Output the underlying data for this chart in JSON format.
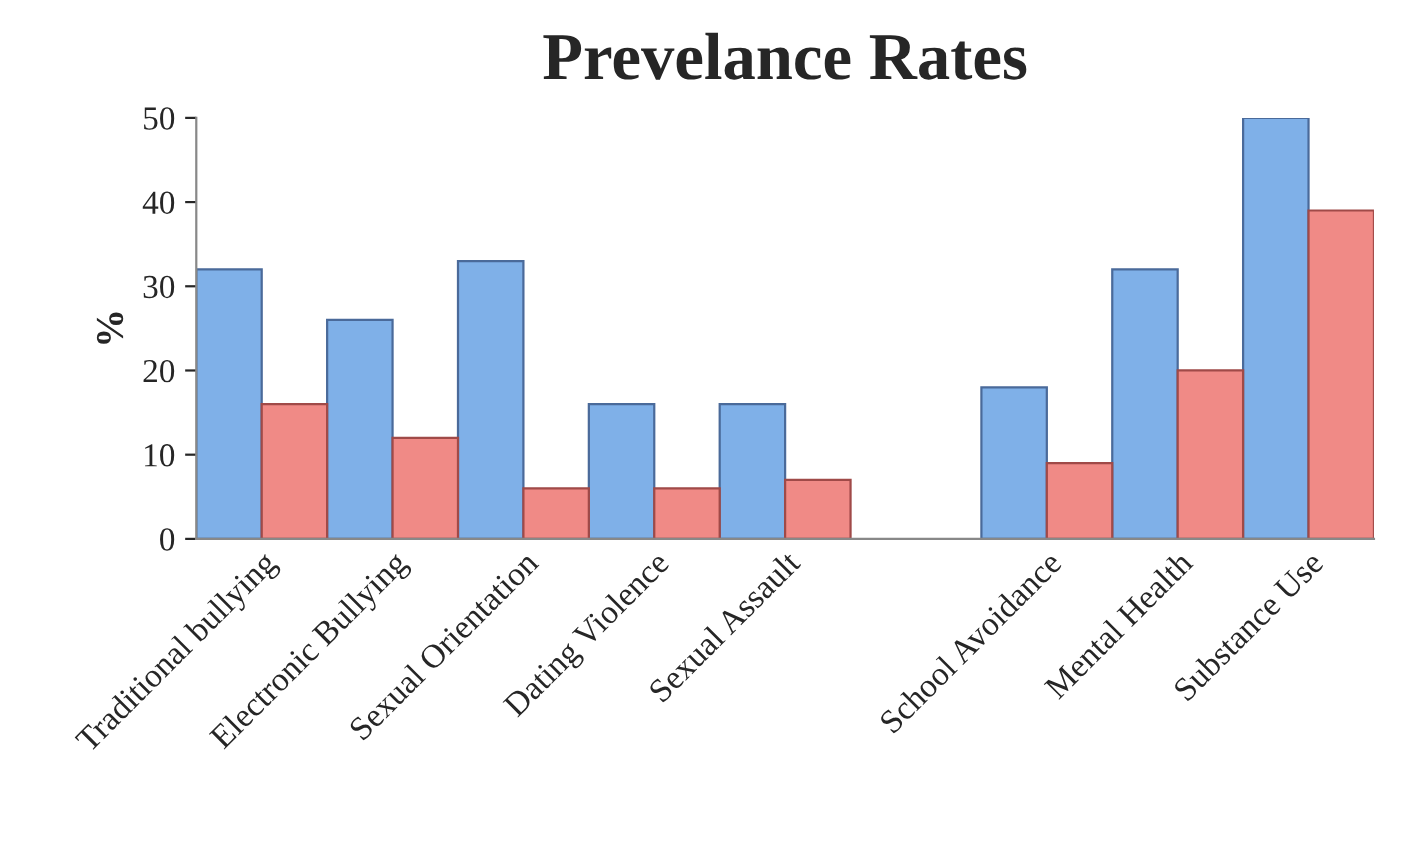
{
  "chart_data": {
    "type": "bar",
    "title": "Prevelance Rates",
    "ylabel": "%",
    "categories": [
      "Traditional bullying",
      "Electronic Bullying",
      "Sexual Orientation",
      "Dating Violence",
      "Sexual Assault",
      null,
      "School Avoidance",
      "Mental Health",
      "Substance Use"
    ],
    "series": [
      {
        "color": "#7fb0e8",
        "values": [
          32,
          26,
          33,
          16,
          16,
          null,
          18,
          32,
          50
        ]
      },
      {
        "color": "#f08a86",
        "values": [
          16,
          12,
          6,
          6,
          7,
          null,
          9,
          20,
          39
        ]
      }
    ],
    "ylim": [
      0,
      50
    ],
    "yticks": [
      0,
      10,
      20,
      30,
      40,
      50
    ],
    "grid": false,
    "legend": false
  }
}
